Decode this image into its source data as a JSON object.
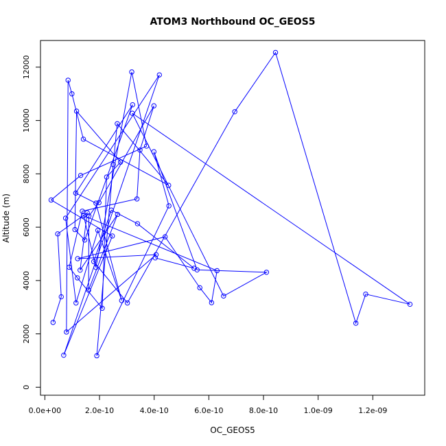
{
  "chart_data": {
    "type": "line",
    "title": "ATOM3 Northbound OC_GEOS5",
    "xlabel": "OC_GEOS5",
    "ylabel": "Altitude (m)",
    "xlim": [
      -1.6e-11,
      1.39e-09
    ],
    "ylim": [
      -300,
      13000
    ],
    "x_ticks": [
      0,
      2e-10,
      4e-10,
      6e-10,
      8e-10,
      1e-09,
      1.2e-09
    ],
    "x_tick_labels": [
      "0.0e+00",
      "2.0e-10",
      "4.0e-10",
      "6.0e-10",
      "8.0e-10",
      "1.0e-09",
      "1.2e-09"
    ],
    "y_ticks": [
      0,
      2000,
      4000,
      6000,
      8000,
      10000,
      12000
    ],
    "y_tick_labels": [
      "0",
      "2000",
      "4000",
      "6000",
      "8000",
      "10000",
      "12000"
    ],
    "grid": false,
    "series": [
      {
        "color": "#0000ff",
        "marker": "open-circle",
        "points": [
          [
            3e-11,
            2430
          ],
          [
            6e-11,
            3390
          ],
          [
            4.7e-11,
            5750
          ],
          [
            1.55e-10,
            6540
          ],
          [
            1.29e-10,
            4390
          ],
          [
            2.66e-10,
            6480
          ],
          [
            1.6e-10,
            3640
          ],
          [
            1.61e-10,
            6420
          ],
          [
            1.98e-10,
            6920
          ],
          [
            3.99e-10,
            10550
          ],
          [
            3.48e-10,
            8890
          ],
          [
            3.37e-10,
            7060
          ],
          [
            1.37e-10,
            6600
          ],
          [
            8.9e-11,
            4500
          ],
          [
            1.19e-10,
            4100
          ],
          [
            2.1e-10,
            2960
          ],
          [
            2.26e-10,
            7880
          ],
          [
            2.77e-10,
            8440
          ],
          [
            1.16e-10,
            10350
          ],
          [
            1.1e-10,
            5910
          ],
          [
            1.46e-10,
            5520
          ],
          [
            3.21e-10,
            10590
          ],
          [
            1.13e-10,
            7280
          ],
          [
            1.87e-10,
            6900
          ],
          [
            2.81e-10,
            3250
          ],
          [
            1.94e-10,
            5880
          ],
          [
            1.14e-10,
            3160
          ],
          [
            7.6e-11,
            6340
          ],
          [
            4.19e-10,
            11710
          ],
          [
            6.9e-11,
            1200
          ],
          [
            2.47e-10,
            5670
          ],
          [
            2.3e-11,
            7020
          ],
          [
            1.31e-10,
            7940
          ],
          [
            3.72e-10,
            9040
          ],
          [
            3.18e-10,
            11820
          ],
          [
            1.87e-10,
            4490
          ],
          [
            1.42e-10,
            6430
          ],
          [
            6.3e-10,
            4370
          ],
          [
            6.1e-10,
            3170
          ],
          [
            5.67e-10,
            3730
          ],
          [
            4.4e-10,
            5640
          ],
          [
            1.2e-10,
            4820
          ],
          [
            4.07e-10,
            4970
          ],
          [
            7.9e-11,
            2070
          ],
          [
            8.5e-11,
            11510
          ],
          [
            9.9e-11,
            11000
          ],
          [
            1.41e-10,
            9300
          ],
          [
            4.53e-10,
            7570
          ],
          [
            2.65e-10,
            9880
          ],
          [
            2.5e-10,
            8350
          ],
          [
            1.9e-10,
            1180
          ],
          [
            4.54e-10,
            6800
          ],
          [
            3.99e-10,
            8830
          ],
          [
            5.57e-10,
            4400
          ],
          [
            8.11e-10,
            4310
          ],
          [
            6.54e-10,
            3420
          ],
          [
            3.2e-10,
            10270
          ],
          [
            1.336e-09,
            3110
          ],
          [
            1.174e-09,
            3490
          ],
          [
            1.138e-09,
            2400
          ],
          [
            8.44e-10,
            12550
          ],
          [
            6.95e-10,
            10330
          ],
          [
            3.02e-10,
            3160
          ],
          [
            1.79e-10,
            4710
          ],
          [
            2.43e-10,
            6640
          ],
          [
            3.39e-10,
            6130
          ],
          [
            5.46e-10,
            4460
          ],
          [
            4.04e-10,
            4850
          ]
        ]
      }
    ]
  }
}
